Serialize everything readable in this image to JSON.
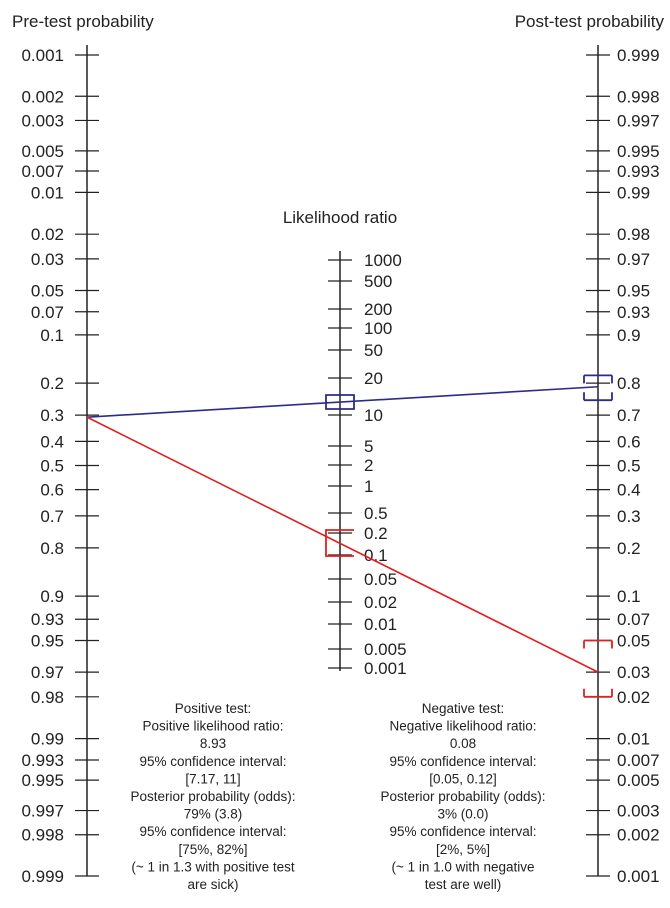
{
  "chart_data": {
    "type": "nomogram",
    "pretest_axis": {
      "title": "Pre-test probability",
      "ticks": [
        "0.001",
        "0.002",
        "0.003",
        "0.005",
        "0.007",
        "0.01",
        "0.02",
        "0.03",
        "0.05",
        "0.07",
        "0.1",
        "0.2",
        "0.3",
        "0.4",
        "0.5",
        "0.6",
        "0.7",
        "0.8",
        "0.9",
        "0.93",
        "0.95",
        "0.97",
        "0.98",
        "0.99",
        "0.993",
        "0.995",
        "0.997",
        "0.998",
        "0.999"
      ]
    },
    "lr_axis": {
      "title": "Likelihood ratio",
      "ticks": [
        "1000",
        "500",
        "200",
        "100",
        "50",
        "20",
        "10",
        "5",
        "2",
        "1",
        "0.5",
        "0.2",
        "0.1",
        "0.05",
        "0.02",
        "0.01",
        "0.005",
        "0.001"
      ]
    },
    "posttest_axis": {
      "title": "Post-test probability",
      "ticks": [
        "0.999",
        "0.998",
        "0.997",
        "0.995",
        "0.993",
        "0.99",
        "0.98",
        "0.97",
        "0.95",
        "0.93",
        "0.9",
        "0.8",
        "0.7",
        "0.6",
        "0.5",
        "0.4",
        "0.3",
        "0.2",
        "0.1",
        "0.07",
        "0.05",
        "0.03",
        "0.02",
        "0.01",
        "0.007",
        "0.005",
        "0.003",
        "0.002",
        "0.001"
      ]
    },
    "series": [
      {
        "color": "#2b2b8c",
        "pretest": 0.3,
        "lr": 8.93,
        "lr_ci": [
          7.17,
          11
        ],
        "posttest": 0.79,
        "posttest_ci": [
          0.75,
          0.82
        ]
      },
      {
        "color": "#e02020",
        "pretest": 0.3,
        "lr": 0.08,
        "lr_ci": [
          0.05,
          0.12
        ],
        "posttest": 0.03,
        "posttest_ci": [
          0.02,
          0.05
        ]
      }
    ],
    "positive_summary": [
      "Positive test:",
      "Positive likelihood ratio:",
      "8.93",
      "95% confidence interval:",
      "[7.17, 11]",
      "Posterior probability (odds):",
      "79% (3.8)",
      "95% confidence interval:",
      "[75%, 82%]",
      "(~ 1 in 1.3 with positive test",
      "are sick)"
    ],
    "negative_summary": [
      "Negative test:",
      "Negative likelihood ratio:",
      "0.08",
      "95% confidence interval:",
      "[0.05, 0.12]",
      "Posterior probability (odds):",
      "3% (0.0)",
      "95% confidence interval:",
      "[2%, 5%]",
      "(~ 1 in 1.0 with negative",
      "test are well)"
    ]
  }
}
